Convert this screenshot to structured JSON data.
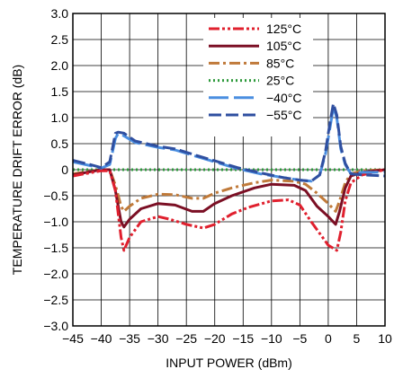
{
  "chart_data": {
    "type": "line",
    "xlabel": "INPUT POWER (dBm)",
    "ylabel": "TEMPERATURE DRIFT ERROR (dB)",
    "xlim": [
      -45,
      10
    ],
    "ylim": [
      -3.0,
      3.0
    ],
    "x_ticks": [
      "−45",
      "−40",
      "−35",
      "−30",
      "−25",
      "−20",
      "−15",
      "−10",
      "−5",
      "0",
      "5",
      "10"
    ],
    "y_ticks": [
      "3.0",
      "2.5",
      "2.0",
      "1.5",
      "1.0",
      "0.5",
      "0",
      "−0.5",
      "−1.0",
      "−1.5",
      "−2.0",
      "−2.5",
      "−3.0"
    ],
    "grid": true,
    "legend_position": "top-right",
    "series": [
      {
        "name": "125°C",
        "color": "#e0202e",
        "dash": "dash-dot-dot",
        "points": [
          [
            -45,
            -0.12
          ],
          [
            -40,
            -0.02
          ],
          [
            -38.5,
            -0.02
          ],
          [
            -37.5,
            -0.4
          ],
          [
            -36.5,
            -1.3
          ],
          [
            -36,
            -1.55
          ],
          [
            -35,
            -1.3
          ],
          [
            -33,
            -1.0
          ],
          [
            -30,
            -0.9
          ],
          [
            -28,
            -0.95
          ],
          [
            -25,
            -1.05
          ],
          [
            -22,
            -1.12
          ],
          [
            -20,
            -1.05
          ],
          [
            -17,
            -0.85
          ],
          [
            -14,
            -0.72
          ],
          [
            -10,
            -0.6
          ],
          [
            -7,
            -0.58
          ],
          [
            -5,
            -0.68
          ],
          [
            -3,
            -1.0
          ],
          [
            -1,
            -1.3
          ],
          [
            0,
            -1.45
          ],
          [
            1.5,
            -1.55
          ],
          [
            2.2,
            -1.2
          ],
          [
            3,
            -0.6
          ],
          [
            4,
            -0.25
          ],
          [
            6,
            -0.1
          ],
          [
            10,
            0.0
          ]
        ]
      },
      {
        "name": "105°C",
        "color": "#7b0f24",
        "dash": "solid",
        "points": [
          [
            -45,
            -0.1
          ],
          [
            -40,
            0.0
          ],
          [
            -38.5,
            0.0
          ],
          [
            -37.5,
            -0.4
          ],
          [
            -36.5,
            -1.0
          ],
          [
            -36,
            -1.1
          ],
          [
            -35,
            -0.95
          ],
          [
            -33,
            -0.75
          ],
          [
            -30,
            -0.65
          ],
          [
            -27,
            -0.68
          ],
          [
            -24,
            -0.8
          ],
          [
            -22,
            -0.8
          ],
          [
            -20,
            -0.65
          ],
          [
            -17,
            -0.5
          ],
          [
            -13,
            -0.35
          ],
          [
            -10,
            -0.28
          ],
          [
            -6,
            -0.3
          ],
          [
            -4,
            -0.4
          ],
          [
            -2,
            -0.7
          ],
          [
            0,
            -0.9
          ],
          [
            1.3,
            -1.05
          ],
          [
            2,
            -0.8
          ],
          [
            3,
            -0.35
          ],
          [
            4,
            -0.12
          ],
          [
            6,
            -0.05
          ],
          [
            10,
            0.0
          ]
        ]
      },
      {
        "name": "85°C",
        "color": "#c07a3a",
        "dash": "dash-dot",
        "points": [
          [
            -45,
            -0.08
          ],
          [
            -40,
            0.0
          ],
          [
            -38.5,
            0.0
          ],
          [
            -37.5,
            -0.3
          ],
          [
            -36.5,
            -0.7
          ],
          [
            -36,
            -0.8
          ],
          [
            -35,
            -0.7
          ],
          [
            -33,
            -0.55
          ],
          [
            -30,
            -0.47
          ],
          [
            -27,
            -0.48
          ],
          [
            -24,
            -0.55
          ],
          [
            -22,
            -0.55
          ],
          [
            -20,
            -0.45
          ],
          [
            -17,
            -0.35
          ],
          [
            -13,
            -0.25
          ],
          [
            -10,
            -0.2
          ],
          [
            -6,
            -0.22
          ],
          [
            -4,
            -0.28
          ],
          [
            -2,
            -0.45
          ],
          [
            0,
            -0.65
          ],
          [
            1.3,
            -0.8
          ],
          [
            2,
            -0.6
          ],
          [
            3,
            -0.25
          ],
          [
            4,
            -0.08
          ],
          [
            6,
            -0.02
          ],
          [
            10,
            0.0
          ]
        ]
      },
      {
        "name": "25°C",
        "color": "#2e9a3c",
        "dash": "dotted",
        "points": [
          [
            -45,
            0.0
          ],
          [
            10,
            0.0
          ]
        ]
      },
      {
        "name": "−40°C",
        "color": "#4a8ee0",
        "dash": "long-dash",
        "points": [
          [
            -45,
            0.15
          ],
          [
            -42,
            0.08
          ],
          [
            -40,
            0.03
          ],
          [
            -38.5,
            0.1
          ],
          [
            -37.5,
            0.6
          ],
          [
            -37,
            0.7
          ],
          [
            -36,
            0.65
          ],
          [
            -34,
            0.52
          ],
          [
            -30,
            0.43
          ],
          [
            -27,
            0.38
          ],
          [
            -24,
            0.28
          ],
          [
            -20,
            0.15
          ],
          [
            -16,
            0.02
          ],
          [
            -12,
            -0.08
          ],
          [
            -8,
            -0.15
          ],
          [
            -5,
            -0.2
          ],
          [
            -3,
            -0.22
          ],
          [
            -1.5,
            -0.1
          ],
          [
            -0.5,
            0.3
          ],
          [
            0.3,
            0.8
          ],
          [
            0.9,
            1.2
          ],
          [
            1.5,
            1.0
          ],
          [
            2.2,
            0.4
          ],
          [
            3,
            0.1
          ],
          [
            4,
            -0.08
          ],
          [
            6,
            -0.05
          ],
          [
            10,
            -0.05
          ]
        ]
      },
      {
        "name": "−55°C",
        "color": "#2f4fa0",
        "dash": "dashed",
        "points": [
          [
            -45,
            0.18
          ],
          [
            -42,
            0.1
          ],
          [
            -40,
            0.04
          ],
          [
            -38.5,
            0.15
          ],
          [
            -37.5,
            0.7
          ],
          [
            -37,
            0.72
          ],
          [
            -36,
            0.7
          ],
          [
            -34,
            0.55
          ],
          [
            -30,
            0.45
          ],
          [
            -27,
            0.4
          ],
          [
            -24,
            0.3
          ],
          [
            -20,
            0.17
          ],
          [
            -16,
            0.04
          ],
          [
            -12,
            -0.06
          ],
          [
            -8,
            -0.15
          ],
          [
            -5,
            -0.2
          ],
          [
            -3,
            -0.22
          ],
          [
            -1.5,
            -0.1
          ],
          [
            -0.5,
            0.35
          ],
          [
            0.3,
            0.9
          ],
          [
            0.9,
            1.27
          ],
          [
            1.5,
            1.05
          ],
          [
            2.2,
            0.45
          ],
          [
            3,
            0.12
          ],
          [
            4,
            -0.08
          ],
          [
            6,
            -0.1
          ],
          [
            10,
            -0.12
          ]
        ]
      }
    ]
  }
}
